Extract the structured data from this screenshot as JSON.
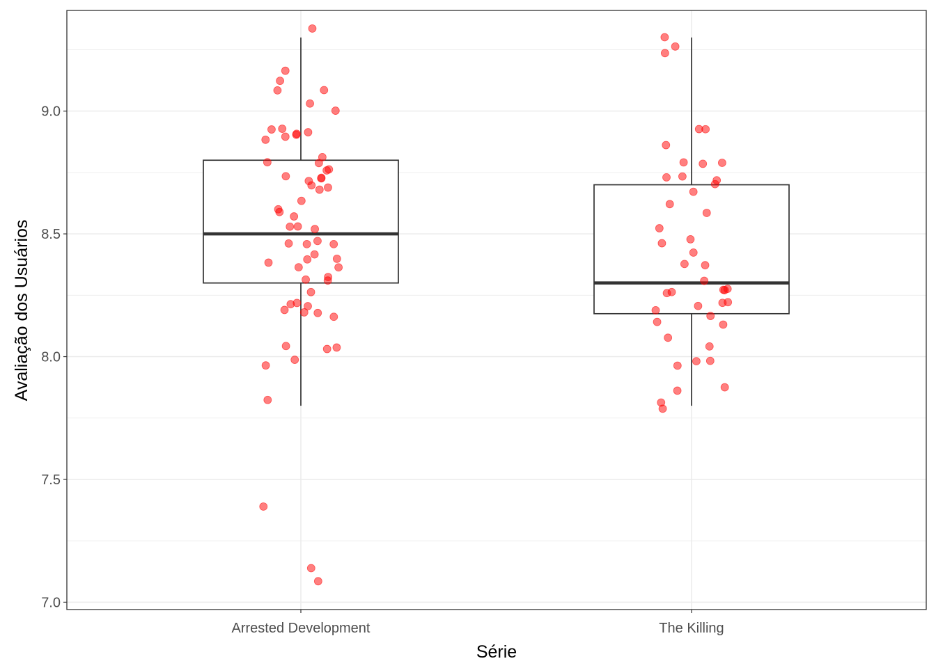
{
  "chart_data": {
    "type": "box",
    "xlabel": "Série",
    "ylabel": "Avaliação dos Usuários",
    "ylim": [
      6.97,
      9.41
    ],
    "yticks": [
      "7.0",
      "7.5",
      "8.0",
      "8.5",
      "9.0"
    ],
    "grid": true,
    "colors": {
      "points": "#ff0000",
      "box": "#333333",
      "axes": "#333333",
      "grid": "#ebebeb"
    },
    "categories": [
      "Arrested Development",
      "The Killing"
    ],
    "boxes": [
      {
        "category": "Arrested Development",
        "lower_whisker": 7.8,
        "q1": 8.3,
        "median": 8.5,
        "q3": 8.8,
        "upper_whisker": 9.3
      },
      {
        "category": "The Killing",
        "lower_whisker": 7.8,
        "q1": 8.175,
        "median": 8.3,
        "q3": 8.7,
        "upper_whisker": 9.3
      }
    ],
    "points": [
      {
        "category": "Arrested Development",
        "values": [
          9.3,
          9.2,
          9.1,
          9.1,
          9.1,
          9.0,
          9.0,
          8.9,
          8.9,
          8.9,
          8.9,
          8.9,
          8.9,
          8.9,
          8.8,
          8.8,
          8.8,
          8.8,
          8.8,
          8.7,
          8.7,
          8.7,
          8.7,
          8.7,
          8.7,
          8.7,
          8.6,
          8.6,
          8.6,
          8.6,
          8.5,
          8.5,
          8.5,
          8.5,
          8.5,
          8.5,
          8.5,
          8.4,
          8.4,
          8.4,
          8.4,
          8.4,
          8.4,
          8.3,
          8.3,
          8.3,
          8.3,
          8.2,
          8.2,
          8.2,
          8.2,
          8.2,
          8.2,
          8.2,
          8.0,
          8.0,
          8.0,
          8.0,
          8.0,
          7.8,
          7.4,
          7.1,
          7.1
        ]
      },
      {
        "category": "The Killing",
        "values": [
          9.3,
          9.3,
          9.2,
          8.9,
          8.9,
          8.9,
          8.8,
          8.8,
          8.8,
          8.7,
          8.7,
          8.7,
          8.7,
          8.7,
          8.6,
          8.6,
          8.5,
          8.5,
          8.5,
          8.4,
          8.4,
          8.4,
          8.3,
          8.3,
          8.3,
          8.3,
          8.3,
          8.3,
          8.2,
          8.2,
          8.2,
          8.2,
          8.2,
          8.1,
          8.1,
          8.1,
          8.0,
          8.0,
          8.0,
          8.0,
          7.9,
          7.9,
          7.8,
          7.8
        ]
      }
    ]
  }
}
